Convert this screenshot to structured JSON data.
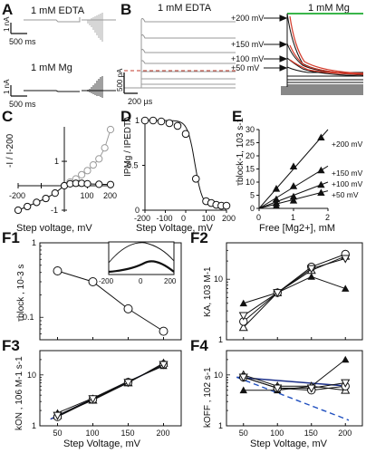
{
  "figure": {
    "panel_labels": [
      "A",
      "B",
      "C",
      "D",
      "E",
      "F1",
      "F2",
      "F3",
      "F4"
    ]
  },
  "panelA": {
    "top_label": "1 mM EDTA",
    "bottom_label": "1 mM Mg",
    "scale_current": "1 nA",
    "scale_time": "500 ms"
  },
  "panelB": {
    "left_label": "1 mM EDTA",
    "right_label": "1 mM Mg",
    "scale_current": "500 pA",
    "scale_time": "200 µs",
    "voltage_markers": [
      "+200 mV",
      "+150 mV",
      "+100 mV",
      "+50 mV"
    ]
  },
  "panelE": {
    "line_labels": [
      "+200 mV",
      "+150 mV",
      "+100 mV",
      "+50 mV"
    ]
  },
  "colors": {
    "trace_gray": "#9a9a9a",
    "trace_black": "#111111",
    "fit_red": "#d43a2a",
    "mg_bar_green": "#39b54a",
    "model_blue": "#1b2f8a",
    "curve_dash_blue": "#1f4fbf",
    "edta_dash_red": "#c0392b"
  },
  "chart_data": [
    {
      "id": "C",
      "type": "line",
      "xlabel": "Step voltage, mV",
      "ylabel": "-I / I-200",
      "xlim": [
        -200,
        200
      ],
      "xticks": [
        "-200",
        "100",
        "200"
      ],
      "yticks": [
        "1",
        "-1"
      ],
      "series": [
        {
          "name": "EDTA",
          "x": [
            -200,
            -160,
            -120,
            -80,
            -40,
            0,
            25,
            50,
            75,
            100,
            125,
            150,
            175,
            200
          ],
          "y": [
            -1.0,
            -0.85,
            -0.68,
            -0.52,
            -0.3,
            0.0,
            0.15,
            0.28,
            0.45,
            0.62,
            0.85,
            1.1,
            1.55,
            2.3
          ]
        },
        {
          "name": "Mg",
          "x": [
            -200,
            -160,
            -120,
            -80,
            -40,
            0,
            25,
            50,
            75,
            100,
            150,
            200
          ],
          "y": [
            -1.0,
            -0.85,
            -0.68,
            -0.52,
            -0.3,
            0.0,
            0.08,
            0.1,
            0.1,
            0.08,
            0.06,
            0.05
          ]
        }
      ]
    },
    {
      "id": "D",
      "type": "scatter",
      "xlabel": "Step Voltage, mV",
      "ylabel": "IPMg / IPEDTA",
      "xlim": [
        -200,
        200
      ],
      "ylim": [
        0,
        1
      ],
      "xticks": [
        "-200",
        "-100",
        "0",
        "100",
        "200"
      ],
      "yticks": [
        "0",
        "0.5",
        "1"
      ],
      "x": [
        -200,
        -160,
        -120,
        -80,
        -40,
        0,
        50,
        100,
        125,
        150,
        175,
        200
      ],
      "y": [
        1.0,
        1.0,
        0.99,
        0.97,
        0.94,
        0.85,
        0.35,
        0.1,
        0.08,
        0.06,
        0.05,
        0.05
      ]
    },
    {
      "id": "E",
      "type": "scatter",
      "xlabel": "Free [Mg2+], mM",
      "ylabel": "τblock-1, 103 s-1",
      "xlim": [
        0,
        2
      ],
      "ylim": [
        0,
        30
      ],
      "xticks": [
        "0",
        "1",
        "2"
      ],
      "yticks": [
        "0",
        "5",
        "10",
        "15",
        "20",
        "25",
        "30"
      ],
      "series": [
        {
          "name": "+200 mV",
          "x": [
            0.5,
            1.0,
            1.8
          ],
          "y": [
            7.5,
            16,
            27
          ]
        },
        {
          "name": "+150 mV",
          "x": [
            0.5,
            1.0,
            1.8
          ],
          "y": [
            3.5,
            8.5,
            14.5
          ]
        },
        {
          "name": "+100 mV",
          "x": [
            0.5,
            1.0,
            1.8
          ],
          "y": [
            2.0,
            4.5,
            9.0
          ]
        },
        {
          "name": "+50 mV",
          "x": [
            0.5,
            1.0,
            1.8
          ],
          "y": [
            1.0,
            3.0,
            6.0
          ]
        }
      ]
    },
    {
      "id": "F1",
      "type": "line",
      "ylabel": "τblock , 10-3 s",
      "xlim": [
        25,
        225
      ],
      "ylim": [
        0.05,
        1
      ],
      "yscale": "log",
      "yticks": [
        "0.1",
        "1"
      ],
      "x": [
        50,
        100,
        150,
        200
      ],
      "y": [
        0.42,
        0.3,
        0.13,
        0.065
      ],
      "inset": {
        "type": "line",
        "xticks": [
          "-200",
          "0",
          "200"
        ],
        "series": [
          {
            "name": "thin"
          },
          {
            "name": "thick"
          }
        ]
      }
    },
    {
      "id": "F2",
      "type": "line",
      "ylabel": "KA, 103 M-1",
      "xlim": [
        25,
        225
      ],
      "yscale": "log",
      "ylim": [
        1,
        40
      ],
      "yticks": [
        "1",
        "10"
      ],
      "x": [
        50,
        100,
        150,
        200
      ],
      "series": [
        {
          "name": "filled triangle",
          "y": [
            4,
            6,
            11,
            7
          ]
        },
        {
          "name": "open triangle",
          "y": [
            1.6,
            6.0,
            14,
            24
          ]
        },
        {
          "name": "open circle",
          "y": [
            2.0,
            6.0,
            16,
            26
          ]
        },
        {
          "name": "inverted triangle",
          "y": [
            2.5,
            6.0,
            15,
            22
          ]
        }
      ]
    },
    {
      "id": "F3",
      "type": "line",
      "xlabel": "Step Voltage, mV",
      "ylabel": "kON , 106 M-1 s-1",
      "xlim": [
        25,
        225
      ],
      "yscale": "log",
      "ylim": [
        1,
        30
      ],
      "xticks": [
        "50",
        "100",
        "150",
        "200"
      ],
      "yticks": [
        "1",
        "10"
      ],
      "x": [
        50,
        100,
        150,
        200
      ],
      "series": [
        {
          "name": "filled triangle",
          "y": [
            1.8,
            3.5,
            7.5,
            15
          ]
        },
        {
          "name": "open triangle",
          "y": [
            1.6,
            3.2,
            7.0,
            17
          ]
        },
        {
          "name": "open circle",
          "y": [
            1.5,
            3.3,
            7.2,
            16
          ]
        },
        {
          "name": "inverted triangle",
          "y": [
            1.6,
            3.4,
            7.1,
            16
          ]
        }
      ]
    },
    {
      "id": "F4",
      "type": "line",
      "xlabel": "Step Voltage, mV",
      "ylabel": "kOFF , 102 s-1",
      "xlim": [
        25,
        225
      ],
      "yscale": "log",
      "ylim": [
        1,
        30
      ],
      "xticks": [
        "50",
        "100",
        "150",
        "200"
      ],
      "yticks": [
        "1",
        "10"
      ],
      "x": [
        50,
        100,
        150,
        200
      ],
      "series": [
        {
          "name": "filled triangle",
          "y": [
            5,
            5,
            6,
            20
          ]
        },
        {
          "name": "open triangle",
          "y": [
            10,
            6,
            6,
            5
          ]
        },
        {
          "name": "open circle",
          "y": [
            9,
            5.5,
            5,
            6
          ]
        },
        {
          "name": "inverted triangle",
          "y": [
            9,
            5.5,
            5.5,
            7
          ]
        }
      ]
    }
  ]
}
